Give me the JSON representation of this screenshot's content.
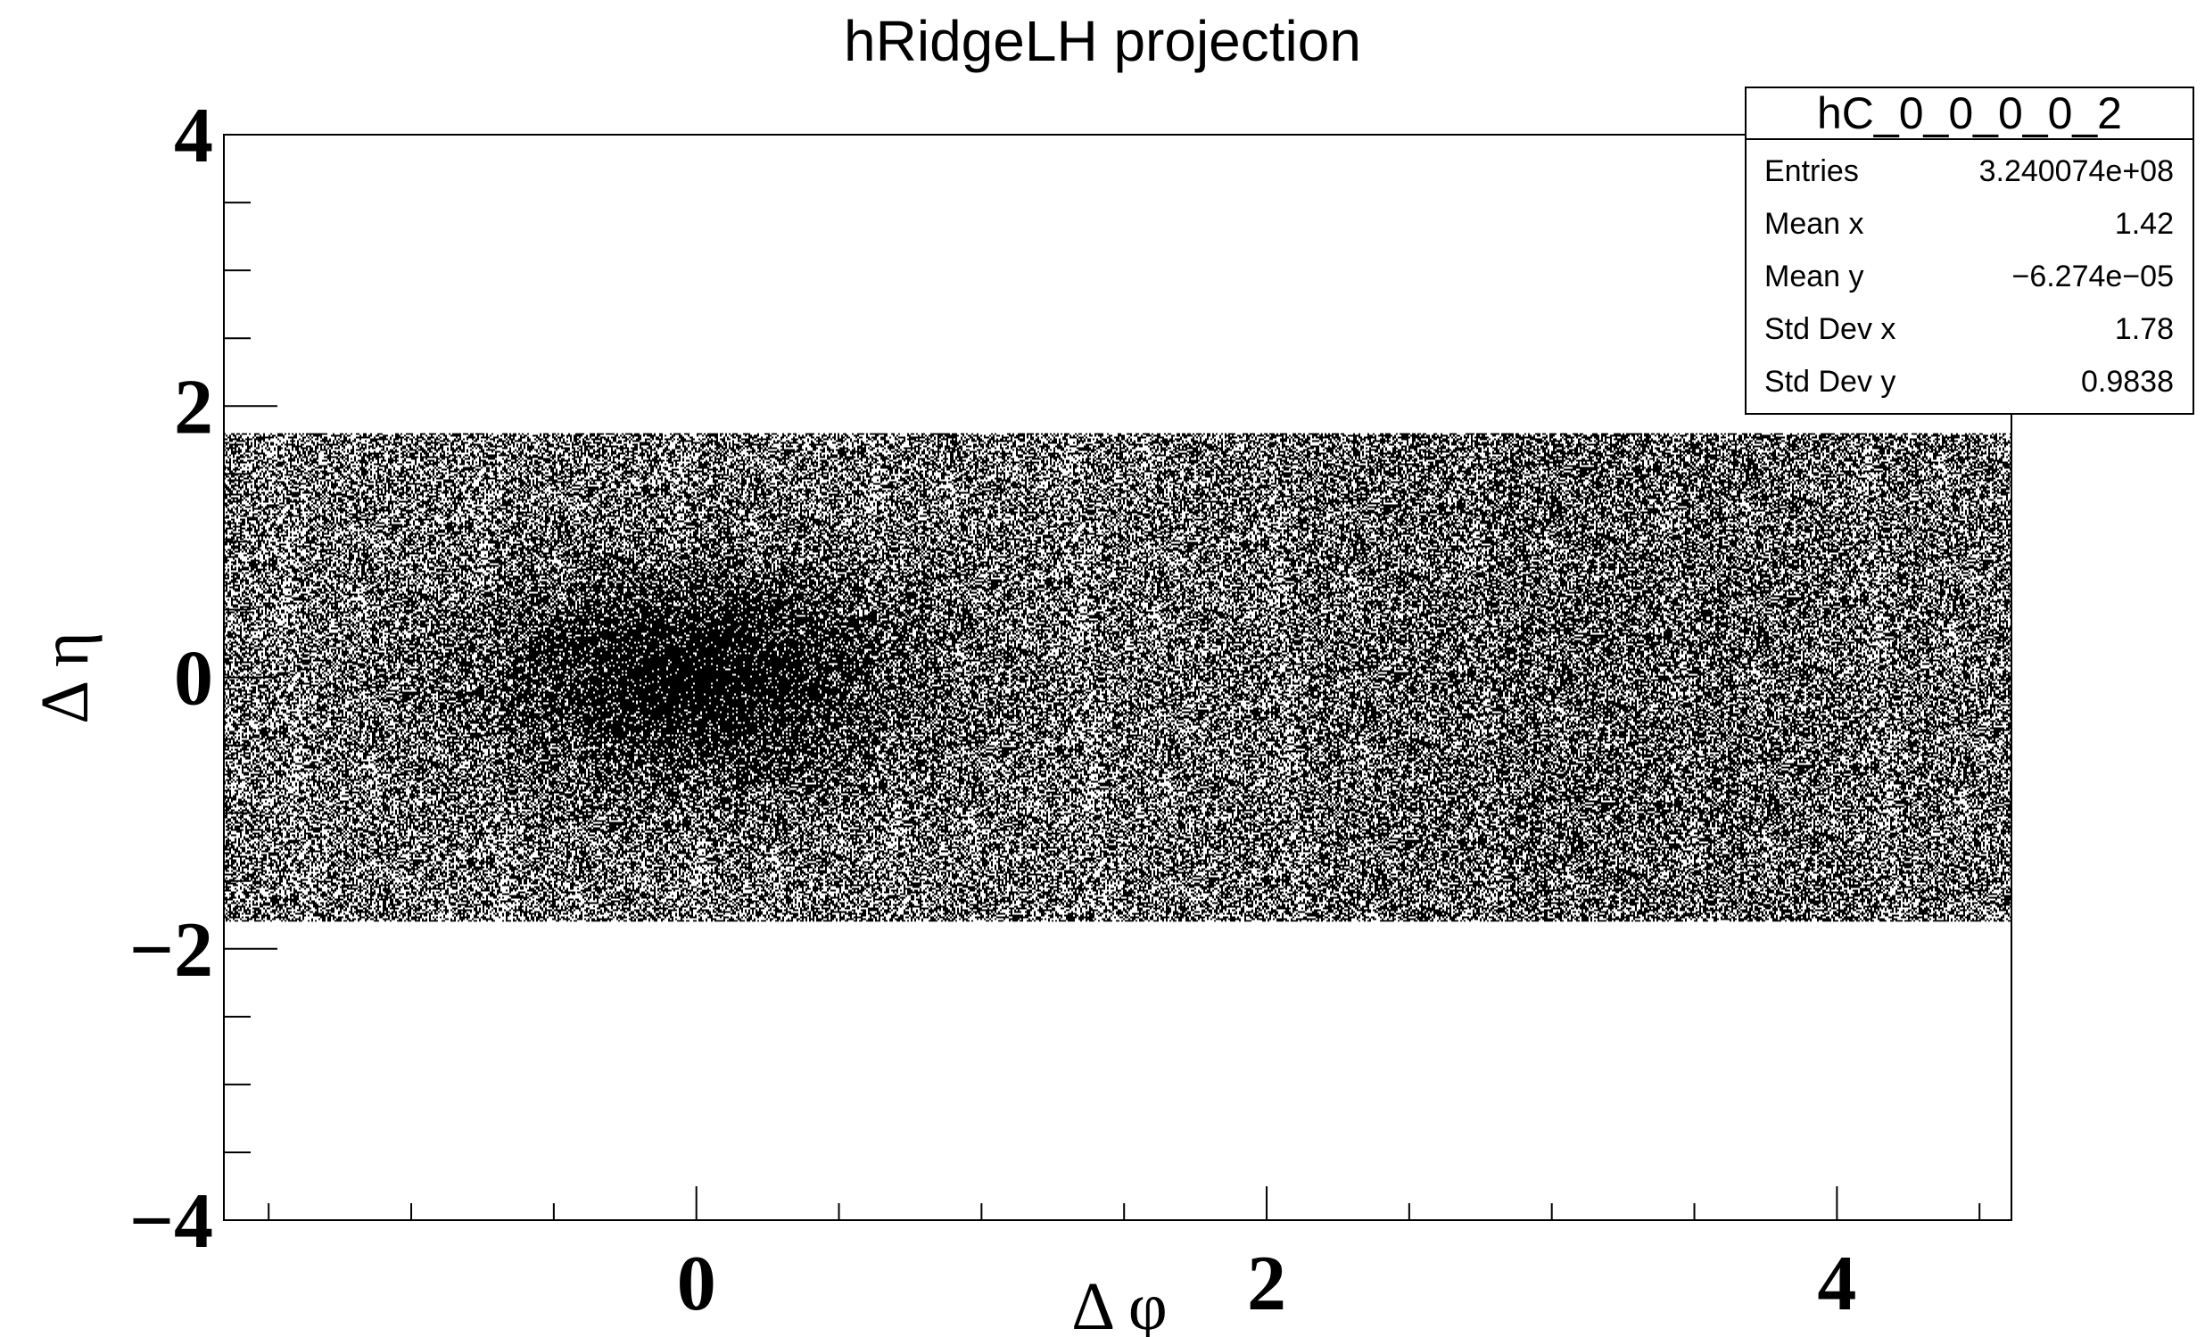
{
  "chart_data": {
    "type": "heatmap",
    "title": "hRidgeLH projection",
    "xlabel": "Δ φ",
    "ylabel": "Δ η",
    "xlim": [
      -1.657,
      4.612
    ],
    "ylim": [
      -4,
      4
    ],
    "data_extent": {
      "x": [
        -1.657,
        4.612
      ],
      "y": [
        -1.8,
        1.8
      ]
    },
    "x_ticks": [
      {
        "value": 0,
        "label": "0"
      },
      {
        "value": 2,
        "label": "2"
      },
      {
        "value": 4,
        "label": "4"
      }
    ],
    "y_ticks": [
      {
        "value": 4,
        "label": "4"
      },
      {
        "value": 2,
        "label": "2"
      },
      {
        "value": 0,
        "label": "0"
      },
      {
        "value": -2,
        "label": "−2"
      },
      {
        "value": -4,
        "label": "−4"
      }
    ],
    "x_minor_step": 0.5,
    "y_minor_step": 0.5,
    "density_features": [
      {
        "name": "near-side peak",
        "x": 0.0,
        "y": 0.0,
        "sigma_x": 0.55,
        "sigma_y": 0.6,
        "amplitude": 0.45
      },
      {
        "name": "away-side ridge",
        "x": 3.14,
        "y": 0.0,
        "sigma_x": 0.9,
        "sigma_y": 2.5,
        "amplitude": 0.12
      }
    ],
    "base_density": 0.5,
    "colors": {
      "fill": "#000000",
      "background": "#ffffff",
      "frame": "#000000"
    }
  },
  "stats_box": {
    "name": "hC_0_0_0_0_2",
    "rows": [
      {
        "label": "Entries",
        "value": "3.240074e+08"
      },
      {
        "label": "Mean x",
        "value": "1.42"
      },
      {
        "label": "Mean y",
        "value": "−6.274e−05"
      },
      {
        "label": "Std Dev x",
        "value": "1.78"
      },
      {
        "label": "Std Dev y",
        "value": "0.9838"
      }
    ]
  }
}
